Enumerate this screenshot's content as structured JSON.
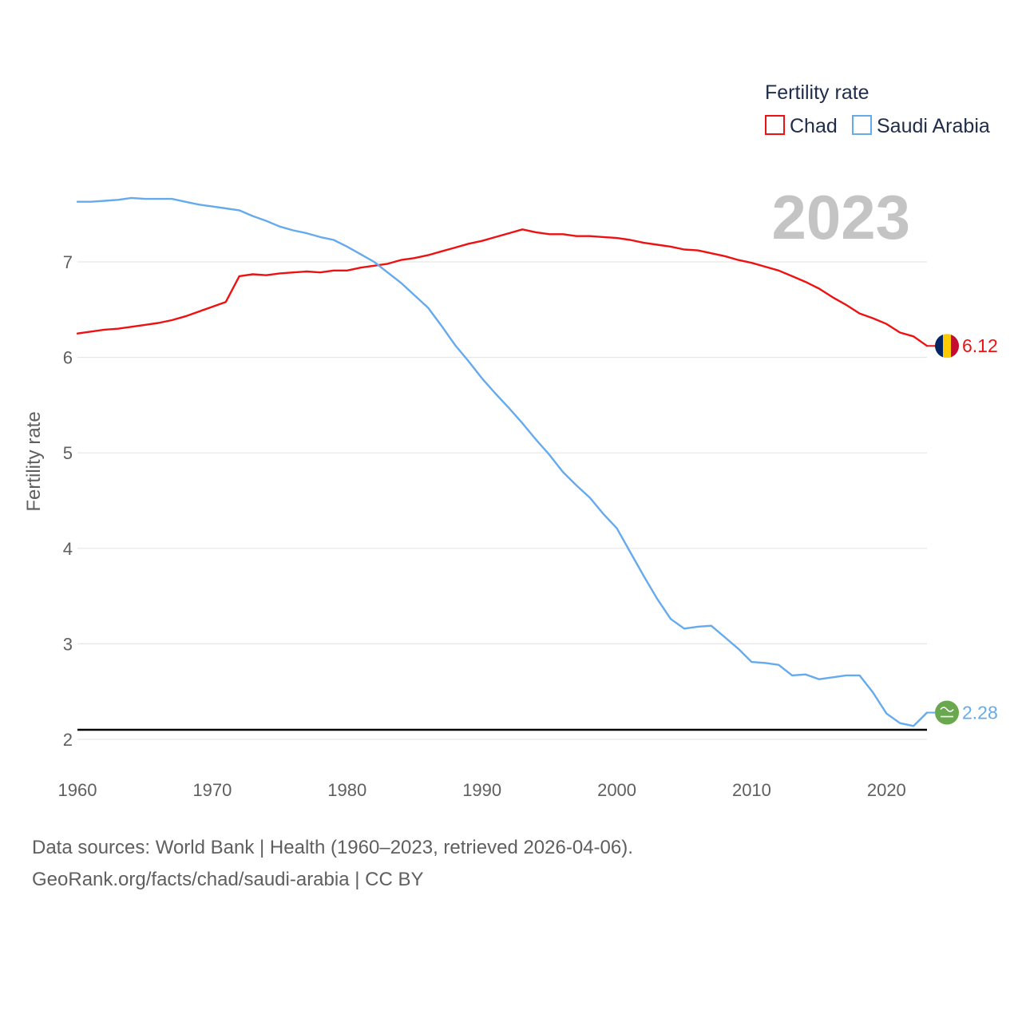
{
  "colors": {
    "chad": "#ee1111",
    "saudi": "#66aaee",
    "grid": "#e6e6e6",
    "refline": "#000000",
    "flag_chad_blue": "#002664",
    "flag_chad_yellow": "#fecb00",
    "flag_chad_red": "#c60c30",
    "flag_saudi_green": "#6aa84f"
  },
  "icons": {
    "chad_flag": "chad-flag-icon",
    "saudi_flag": "saudi-flag-icon"
  },
  "chart_data": {
    "type": "line",
    "title": "",
    "year_watermark": "2023",
    "xlabel": "",
    "ylabel": "Fertility rate",
    "xlim": [
      1960,
      2023
    ],
    "ylim": [
      2,
      7.8
    ],
    "xticks": [
      "1960",
      "1970",
      "1980",
      "1990",
      "2000",
      "2010",
      "2020"
    ],
    "yticks": [
      "2",
      "3",
      "4",
      "5",
      "6",
      "7"
    ],
    "grid": true,
    "reference_line": 2.1,
    "legend": {
      "title": "Fertility rate",
      "position": "top-right"
    },
    "x": [
      1960,
      1961,
      1962,
      1963,
      1964,
      1965,
      1966,
      1967,
      1968,
      1969,
      1970,
      1971,
      1972,
      1973,
      1974,
      1975,
      1976,
      1977,
      1978,
      1979,
      1980,
      1981,
      1982,
      1983,
      1984,
      1985,
      1986,
      1987,
      1988,
      1989,
      1990,
      1991,
      1992,
      1993,
      1994,
      1995,
      1996,
      1997,
      1998,
      1999,
      2000,
      2001,
      2002,
      2003,
      2004,
      2005,
      2006,
      2007,
      2008,
      2009,
      2010,
      2011,
      2012,
      2013,
      2014,
      2015,
      2016,
      2017,
      2018,
      2019,
      2020,
      2021,
      2022,
      2023
    ],
    "series": [
      {
        "name": "Chad",
        "end_label": "6.12",
        "values": [
          6.25,
          6.27,
          6.29,
          6.3,
          6.32,
          6.34,
          6.36,
          6.39,
          6.43,
          6.48,
          6.53,
          6.58,
          6.85,
          6.87,
          6.86,
          6.88,
          6.89,
          6.9,
          6.89,
          6.91,
          6.91,
          6.94,
          6.96,
          6.98,
          7.02,
          7.04,
          7.07,
          7.11,
          7.15,
          7.19,
          7.22,
          7.26,
          7.3,
          7.34,
          7.31,
          7.29,
          7.29,
          7.27,
          7.27,
          7.26,
          7.25,
          7.23,
          7.2,
          7.18,
          7.16,
          7.13,
          7.12,
          7.09,
          7.06,
          7.02,
          6.99,
          6.95,
          6.91,
          6.85,
          6.79,
          6.72,
          6.63,
          6.55,
          6.46,
          6.41,
          6.35,
          6.26,
          6.22,
          6.12
        ]
      },
      {
        "name": "Saudi Arabia",
        "end_label": "2.28",
        "values": [
          7.63,
          7.63,
          7.64,
          7.65,
          7.67,
          7.66,
          7.66,
          7.66,
          7.63,
          7.6,
          7.58,
          7.56,
          7.54,
          7.48,
          7.43,
          7.37,
          7.33,
          7.3,
          7.26,
          7.23,
          7.16,
          7.08,
          7.0,
          6.89,
          6.78,
          6.65,
          6.52,
          6.33,
          6.13,
          5.96,
          5.78,
          5.62,
          5.47,
          5.31,
          5.14,
          4.98,
          4.8,
          4.66,
          4.53,
          4.36,
          4.21,
          3.96,
          3.71,
          3.47,
          3.26,
          3.16,
          3.18,
          3.19,
          3.07,
          2.95,
          2.81,
          2.8,
          2.78,
          2.67,
          2.68,
          2.63,
          2.65,
          2.67,
          2.67,
          2.49,
          2.27,
          2.17,
          2.14,
          2.28
        ]
      }
    ]
  },
  "footer": {
    "line1": "Data sources: World Bank | Health (1960–2023, retrieved 2026-04-06).",
    "line2": "GeoRank.org/facts/chad/saudi-arabia | CC BY"
  }
}
